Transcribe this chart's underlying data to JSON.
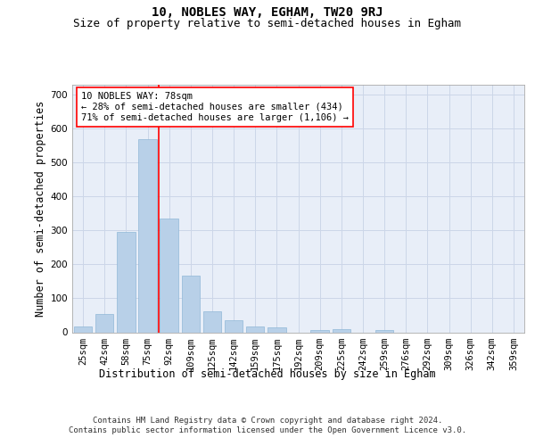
{
  "title": "10, NOBLES WAY, EGHAM, TW20 9RJ",
  "subtitle": "Size of property relative to semi-detached houses in Egham",
  "xlabel": "Distribution of semi-detached houses by size in Egham",
  "ylabel": "Number of semi-detached properties",
  "categories": [
    "25sqm",
    "42sqm",
    "58sqm",
    "75sqm",
    "92sqm",
    "109sqm",
    "125sqm",
    "142sqm",
    "159sqm",
    "175sqm",
    "192sqm",
    "209sqm",
    "225sqm",
    "242sqm",
    "259sqm",
    "276sqm",
    "292sqm",
    "309sqm",
    "326sqm",
    "342sqm",
    "359sqm"
  ],
  "values": [
    17,
    55,
    295,
    570,
    335,
    168,
    62,
    35,
    17,
    15,
    0,
    7,
    10,
    0,
    7,
    0,
    0,
    0,
    0,
    0,
    0
  ],
  "bar_color": "#b8d0e8",
  "bar_edge_color": "#90b8d8",
  "red_line_index": 3,
  "annotation_text": "10 NOBLES WAY: 78sqm\n← 28% of semi-detached houses are smaller (434)\n71% of semi-detached houses are larger (1,106) →",
  "ylim": [
    0,
    730
  ],
  "yticks": [
    0,
    100,
    200,
    300,
    400,
    500,
    600,
    700
  ],
  "grid_color": "#ccd6e8",
  "background_color": "#e8eef8",
  "footer": "Contains HM Land Registry data © Crown copyright and database right 2024.\nContains public sector information licensed under the Open Government Licence v3.0.",
  "title_fontsize": 10,
  "subtitle_fontsize": 9,
  "axis_label_fontsize": 8.5,
  "tick_fontsize": 7.5,
  "annotation_fontsize": 7.5,
  "footer_fontsize": 6.5
}
